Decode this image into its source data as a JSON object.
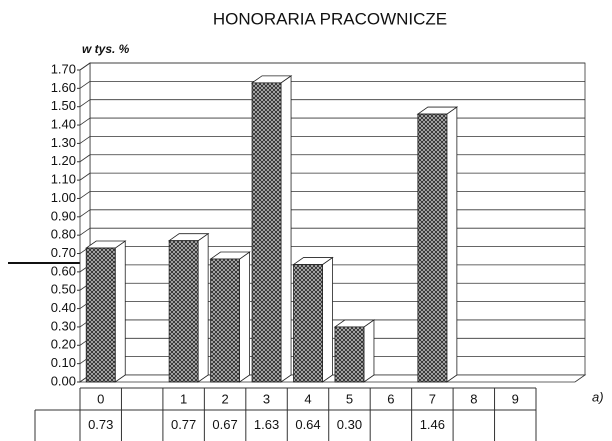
{
  "chart_data": {
    "type": "bar",
    "title": "HONORARIA PRACOWNICZE",
    "y_label": "w tys. %",
    "annotation": "a)",
    "categories": [
      "0",
      null,
      "1",
      "2",
      "3",
      "4",
      "5",
      "6",
      "7",
      "8",
      "9"
    ],
    "values": [
      0.73,
      null,
      0.77,
      0.67,
      1.63,
      0.64,
      0.3,
      null,
      1.46,
      null,
      null
    ],
    "value_labels": [
      "0.73",
      null,
      "0.77",
      "0.67",
      "1.63",
      "0.64",
      "0.30",
      null,
      "1.46",
      null,
      null
    ],
    "color": "#555555",
    "ylim": [
      0,
      1.7
    ],
    "yticks": [
      {
        "value": 0,
        "label": "0.00"
      },
      {
        "value": 0.1,
        "label": "0.10"
      },
      {
        "value": 0.2,
        "label": "0.20"
      },
      {
        "value": 0.3,
        "label": "0.30"
      },
      {
        "value": 0.4,
        "label": "0.40"
      },
      {
        "value": 0.5,
        "label": "0.50"
      },
      {
        "value": 0.6,
        "label": "0.60"
      },
      {
        "value": 0.7,
        "label": "0.70"
      },
      {
        "value": 0.8,
        "label": "0.80"
      },
      {
        "value": 0.9,
        "label": "0.90"
      },
      {
        "value": 1,
        "label": "1.00"
      },
      {
        "value": 1.1,
        "label": "1.10"
      },
      {
        "value": 1.2,
        "label": "1.20"
      },
      {
        "value": 1.3,
        "label": "1.30"
      },
      {
        "value": 1.4,
        "label": "1.40"
      },
      {
        "value": 1.5,
        "label": "1.50"
      },
      {
        "value": 1.6,
        "label": "1.60"
      },
      {
        "value": 1.7,
        "label": "1.70"
      }
    ],
    "grid": true
  }
}
